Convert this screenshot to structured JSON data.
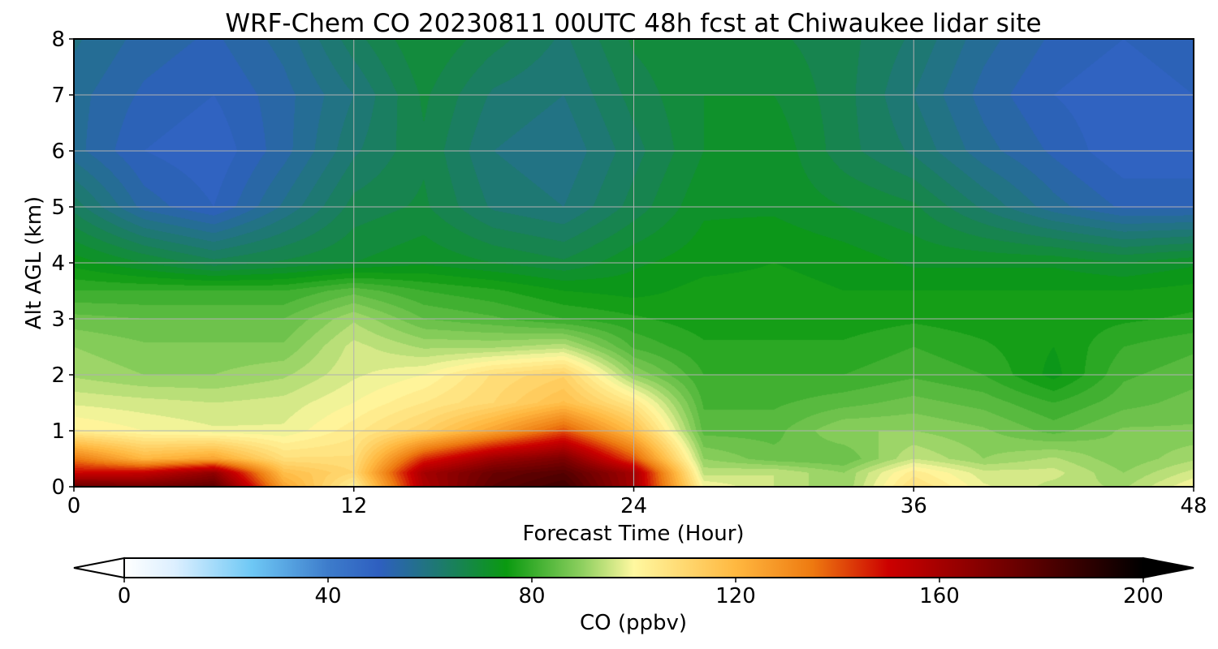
{
  "chart_data": {
    "type": "heatmap",
    "title": "WRF-Chem CO  20230811 00UTC 48h fcst at Chiwaukee lidar site",
    "xlabel": "Forecast Time (Hour)",
    "ylabel": "Alt AGL (km)",
    "xlim": [
      0,
      48
    ],
    "ylim": [
      0,
      8
    ],
    "x_ticks": [
      0,
      12,
      24,
      36,
      48
    ],
    "x_tick_labels": [
      "0",
      "12",
      "24",
      "36",
      "48"
    ],
    "y_ticks": [
      0,
      1,
      2,
      3,
      4,
      5,
      6,
      7,
      8
    ],
    "y_tick_labels": [
      "0",
      "1",
      "2",
      "3",
      "4",
      "5",
      "6",
      "7",
      "8"
    ],
    "grid": true,
    "x_hours": [
      0,
      3,
      6,
      9,
      12,
      15,
      18,
      21,
      24,
      27,
      30,
      33,
      36,
      39,
      42,
      45,
      48
    ],
    "z_km": [
      0,
      0.25,
      0.5,
      1,
      1.5,
      2,
      2.5,
      3,
      3.5,
      4,
      5,
      6,
      7,
      8
    ],
    "co_ppbv": [
      [
        175,
        172,
        178,
        125,
        102,
        158,
        178,
        185,
        160,
        100,
        95,
        90,
        108,
        98,
        94,
        92,
        100
      ],
      [
        150,
        152,
        165,
        118,
        110,
        160,
        175,
        180,
        160,
        94,
        95,
        90,
        104,
        96,
        96,
        90,
        96
      ],
      [
        135,
        120,
        125,
        108,
        108,
        145,
        162,
        170,
        140,
        90,
        86,
        85,
        95,
        90,
        93,
        88,
        92
      ],
      [
        103,
        100,
        98,
        98,
        104,
        112,
        125,
        140,
        118,
        84,
        84,
        90,
        90,
        88,
        84,
        88,
        88
      ],
      [
        97,
        96,
        95,
        96,
        100,
        105,
        110,
        118,
        105,
        82,
        82,
        84,
        86,
        84,
        80,
        84,
        86
      ],
      [
        92,
        90,
        90,
        92,
        97,
        100,
        108,
        112,
        90,
        80,
        80,
        80,
        82,
        80,
        74,
        82,
        84
      ],
      [
        90,
        88,
        88,
        88,
        96,
        92,
        92,
        94,
        82,
        78,
        78,
        78,
        80,
        78,
        75,
        80,
        82
      ],
      [
        86,
        85,
        85,
        85,
        92,
        85,
        83,
        80,
        78,
        76,
        76,
        76,
        77,
        76,
        76,
        77,
        78
      ],
      [
        80,
        80,
        80,
        80,
        84,
        80,
        78,
        75,
        74,
        76,
        76,
        75,
        75,
        75,
        75,
        75,
        76
      ],
      [
        74,
        70,
        66,
        68,
        70,
        72,
        70,
        68,
        72,
        74,
        75,
        74,
        72,
        72,
        72,
        70,
        72
      ],
      [
        64,
        54,
        50,
        58,
        66,
        68,
        62,
        60,
        66,
        72,
        72,
        70,
        68,
        62,
        56,
        52,
        52
      ],
      [
        56,
        50,
        48,
        54,
        62,
        67,
        60,
        58,
        64,
        70,
        72,
        66,
        62,
        56,
        52,
        48,
        48
      ],
      [
        56,
        52,
        50,
        54,
        60,
        68,
        62,
        60,
        66,
        70,
        70,
        66,
        60,
        54,
        50,
        48,
        50
      ],
      [
        58,
        54,
        52,
        56,
        64,
        70,
        66,
        62,
        68,
        70,
        68,
        66,
        62,
        56,
        52,
        50,
        52
      ]
    ],
    "colorbar": {
      "label": "CO  (ppbv)",
      "min": 0,
      "max": 200,
      "ticks": [
        0,
        40,
        80,
        120,
        160,
        200
      ],
      "tick_labels": [
        "0",
        "40",
        "80",
        "120",
        "160",
        "200"
      ],
      "extend": "both",
      "orientation": "horizontal",
      "colors": [
        "#ffffff",
        "#dcefff",
        "#6ec8f5",
        "#3d7ccb",
        "#2e5fc0",
        "#1d7a6e",
        "#0a9a10",
        "#8fd060",
        "#fff8a0",
        "#ffb840",
        "#ee7a10",
        "#cc0000",
        "#6a0000",
        "#000000"
      ],
      "color_stops": [
        0,
        10,
        25,
        40,
        50,
        62,
        75,
        90,
        100,
        120,
        135,
        150,
        175,
        200
      ]
    }
  }
}
